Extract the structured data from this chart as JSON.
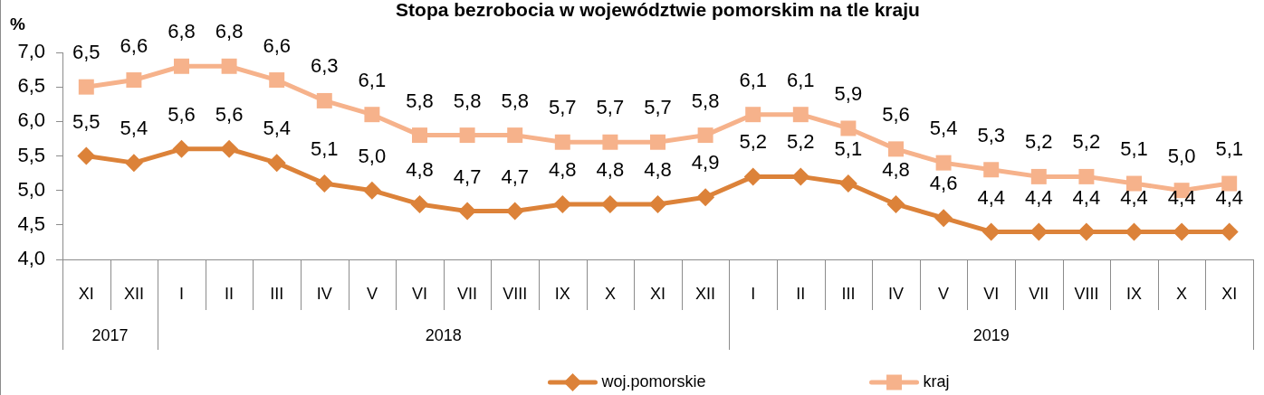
{
  "chart_data": {
    "type": "line",
    "title": "Stopa bezrobocia w województwie pomorskim na tle kraju",
    "ylabel": "%",
    "categories": [
      "XI",
      "XII",
      "I",
      "II",
      "III",
      "IV",
      "V",
      "VI",
      "VII",
      "VIII",
      "IX",
      "X",
      "XI",
      "XII",
      "I",
      "II",
      "III",
      "IV",
      "V",
      "VI",
      "VII",
      "VIII",
      "IX",
      "X",
      "XI"
    ],
    "annotations": [
      "2017",
      "2018",
      "2019"
    ],
    "ylim": [
      4,
      7
    ],
    "yticks": [
      {
        "value": 4,
        "label": "4,0"
      },
      {
        "value": 4.5,
        "label": "4,5"
      },
      {
        "value": 5,
        "label": "5,0"
      },
      {
        "value": 5.5,
        "label": "5,5"
      },
      {
        "value": 6,
        "label": "6,0"
      },
      {
        "value": 6.5,
        "label": "6,5"
      },
      {
        "value": 7,
        "label": "7,0"
      }
    ],
    "legend": "bottom",
    "series": [
      {
        "name": "woj.pomorskie",
        "color": "#dc8239",
        "marker": "diamond",
        "values": [
          5.5,
          5.4,
          5.6,
          5.6,
          5.4,
          5.1,
          5.0,
          4.8,
          4.7,
          4.7,
          4.8,
          4.8,
          4.8,
          4.9,
          5.2,
          5.2,
          5.1,
          4.8,
          4.6,
          4.4,
          4.4,
          4.4,
          4.4,
          4.4,
          4.4
        ],
        "value_labels": [
          "5,5",
          "5,4",
          "5,6",
          "5,6",
          "5,4",
          "5,1",
          "5,0",
          "4,8",
          "4,7",
          "4,7",
          "4,8",
          "4,8",
          "4,8",
          "4,9",
          "5,2",
          "5,2",
          "5,1",
          "4,8",
          "4,6",
          "4,4",
          "4,4",
          "4,4",
          "4,4",
          "4,4",
          "4,4"
        ]
      },
      {
        "name": "kraj",
        "color": "#f6b28b",
        "marker": "square",
        "values": [
          6.5,
          6.6,
          6.8,
          6.8,
          6.6,
          6.3,
          6.1,
          5.8,
          5.8,
          5.8,
          5.7,
          5.7,
          5.7,
          5.8,
          6.1,
          6.1,
          5.9,
          5.6,
          5.4,
          5.3,
          5.2,
          5.2,
          5.1,
          5.0,
          5.1
        ],
        "value_labels": [
          "6,5",
          "6,6",
          "6,8",
          "6,8",
          "6,6",
          "6,3",
          "6,1",
          "5,8",
          "5,8",
          "5,8",
          "5,7",
          "5,7",
          "5,7",
          "5,8",
          "6,1",
          "6,1",
          "5,9",
          "5,6",
          "5,4",
          "5,3",
          "5,2",
          "5,2",
          "5,1",
          "5,0",
          "5,1"
        ]
      }
    ]
  }
}
